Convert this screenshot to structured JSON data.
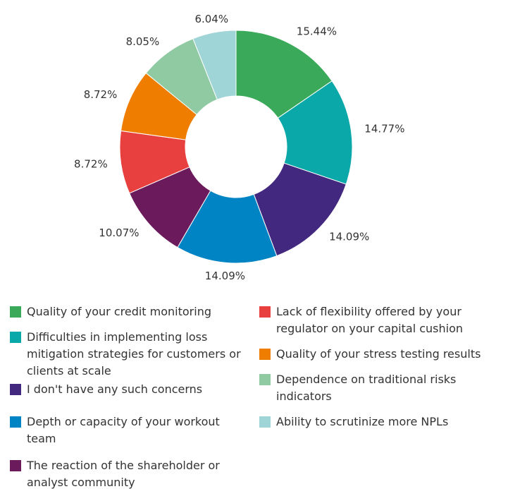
{
  "chart_data": {
    "type": "pie",
    "categories": [
      "Quality of your credit monitoring",
      "Difficulties in implementing loss mitigation strategies for customers or clients at scale",
      "I don't have any such concerns",
      "Depth or capacity of your workout team",
      "The reaction of the shareholder or analyst community",
      "Lack of flexibility offered by your regulator on your capital cushion",
      "Quality of your stress testing results",
      "Dependence on traditional risks indicators",
      "Ability to scrutinize more NPLs"
    ],
    "values": [
      15.44,
      14.77,
      14.09,
      14.09,
      10.07,
      8.72,
      8.72,
      8.05,
      6.04
    ],
    "value_labels": [
      "15.44%",
      "14.77%",
      "14.09%",
      "14.09%",
      "10.07%",
      "8.72%",
      "8.72%",
      "8.05%",
      "6.04%"
    ],
    "colors": [
      "#3aaa5a",
      "#0aa8a8",
      "#43287f",
      "#0084c4",
      "#6b1a5c",
      "#e8403f",
      "#ee7d00",
      "#8fcaa3",
      "#9fd5d6"
    ],
    "donut": true
  }
}
